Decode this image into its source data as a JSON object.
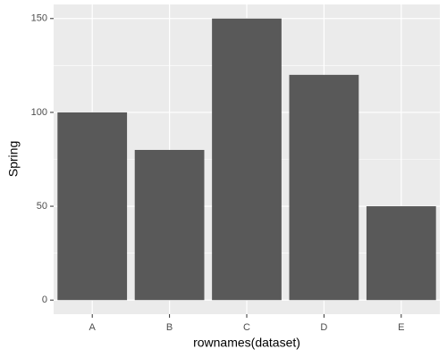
{
  "chart_data": {
    "type": "bar",
    "x_label": "rownames(dataset)",
    "y_label": "Spring",
    "categories": [
      "A",
      "B",
      "C",
      "D",
      "E"
    ],
    "values": [
      100,
      80,
      150,
      120,
      50
    ],
    "color": "#595959",
    "ylim": [
      -7.5,
      157.5
    ],
    "yticks": [
      0,
      50,
      100,
      150
    ],
    "grid": true
  }
}
